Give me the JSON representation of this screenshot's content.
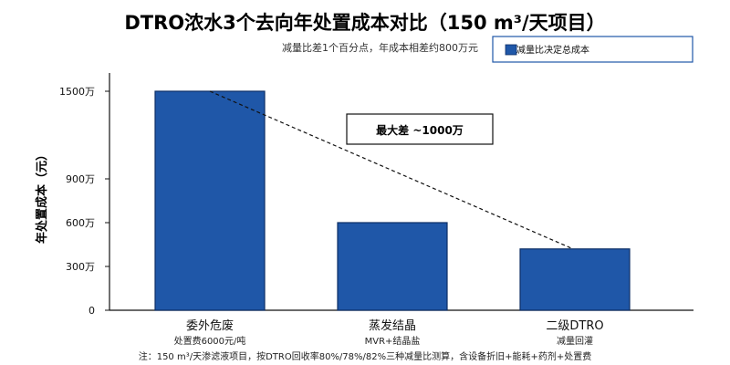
{
  "chart_data": {
    "type": "bar",
    "title": "DTRO浓水3个去向年处置成本对比（150 m³/天项目）",
    "subtitle": "减量比差1个百分点，年成本相差约800万元",
    "ylabel": "年处置成本（元）",
    "xlabel": "",
    "categories": [
      "委外危废",
      "蒸发结晶",
      "二级DTRO"
    ],
    "category_sublabels": [
      "处置费6000元/吨",
      "MVR+结晶盐",
      "减量回灌"
    ],
    "series": [
      {
        "name": "减量比决定总成本",
        "values": [
          1500,
          600,
          420
        ],
        "color": "#1f57a8"
      }
    ],
    "ylim": [
      0,
      1700
    ],
    "yticks": [
      {
        "value": 0,
        "label": "0"
      },
      {
        "value": 300,
        "label": "300万"
      },
      {
        "value": 600,
        "label": "600万"
      },
      {
        "value": 900,
        "label": "900万"
      },
      {
        "value": 1500,
        "label": "1500万"
      }
    ],
    "annotation": {
      "text": "最大差 ~1000万",
      "from_category": 0,
      "to_category": 2
    },
    "note": "注：150 m³/天渗滤液项目，按DTRO回收率80%/78%/82%三种减量比测算，含设备折旧+能耗+药剂+处置费",
    "legend_position": "top-right",
    "grid": false
  }
}
